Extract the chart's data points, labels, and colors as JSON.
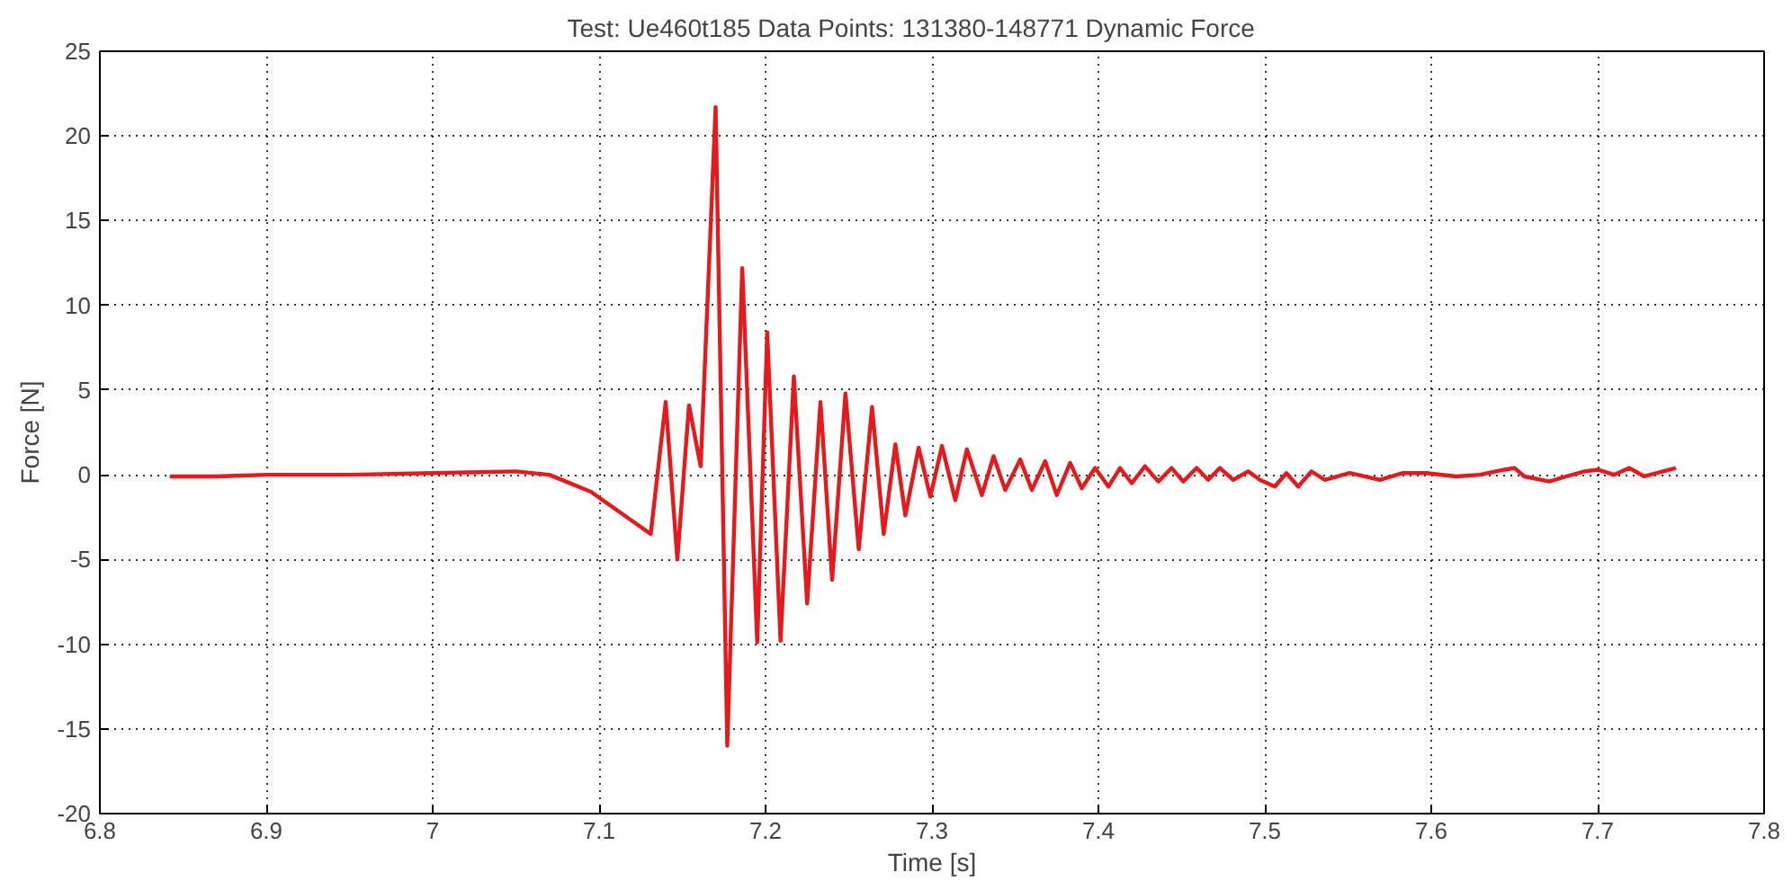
{
  "chart_data": {
    "type": "line",
    "title": "Test: Ue460t185    Data Points: 131380-148771    Dynamic Force",
    "xlabel": "Time [s]",
    "ylabel": "Force [N]",
    "xlim": [
      6.8,
      7.8
    ],
    "xticks": [
      6.8,
      6.9,
      7,
      7.1,
      7.2,
      7.3,
      7.4,
      7.5,
      7.6,
      7.7,
      7.8
    ],
    "ylim": [
      -20,
      25
    ],
    "yticks": [
      -20,
      -15,
      -10,
      -5,
      0,
      5,
      10,
      15,
      20,
      25
    ],
    "grid": true,
    "marker": "none",
    "line_style": "solid",
    "x": [
      6.842,
      6.87,
      6.9,
      6.95,
      7.0,
      7.05,
      7.07,
      7.08,
      7.095,
      7.131,
      7.14,
      7.147,
      7.154,
      7.161,
      7.17,
      7.177,
      7.186,
      7.195,
      7.201,
      7.209,
      7.217,
      7.225,
      7.233,
      7.24,
      7.248,
      7.256,
      7.264,
      7.271,
      7.278,
      7.284,
      7.292,
      7.299,
      7.306,
      7.314,
      7.321,
      7.33,
      7.337,
      7.344,
      7.353,
      7.36,
      7.368,
      7.375,
      7.383,
      7.39,
      7.398,
      7.406,
      7.413,
      7.42,
      7.428,
      7.436,
      7.444,
      7.451,
      7.459,
      7.466,
      7.473,
      7.481,
      7.49,
      7.497,
      7.506,
      7.513,
      7.52,
      7.528,
      7.536,
      7.551,
      7.569,
      7.583,
      7.597,
      7.615,
      7.629,
      7.644,
      7.65,
      7.656,
      7.671,
      7.681,
      7.692,
      7.7,
      7.71,
      7.719,
      7.728,
      7.747
    ],
    "series": [
      {
        "color": "#e41a1c",
        "values": [
          -0.1,
          -0.1,
          0,
          0,
          0.1,
          0.2,
          0,
          -0.4,
          -1,
          -3.5,
          4.3,
          -5,
          4.1,
          0.5,
          21.7,
          -16,
          12.2,
          -9.9,
          8.4,
          -9.8,
          5.8,
          -7.6,
          4.3,
          -6.2,
          4.8,
          -4.4,
          4,
          -3.5,
          1.8,
          -2.4,
          1.6,
          -1.3,
          1.7,
          -1.5,
          1.5,
          -1.2,
          1.1,
          -0.9,
          0.9,
          -0.9,
          0.8,
          -1.2,
          0.7,
          -0.8,
          0.4,
          -0.7,
          0.4,
          -0.5,
          0.5,
          -0.4,
          0.4,
          -0.4,
          0.4,
          -0.3,
          0.4,
          -0.3,
          0.2,
          -0.3,
          -0.7,
          0.1,
          -0.7,
          0.2,
          -0.3,
          0.1,
          -0.3,
          0.1,
          0.1,
          -0.1,
          0,
          0.3,
          0.4,
          -0.1,
          -0.4,
          -0.1,
          0.2,
          0.3,
          0,
          0.4,
          -0.1,
          0.4
        ]
      }
    ]
  }
}
